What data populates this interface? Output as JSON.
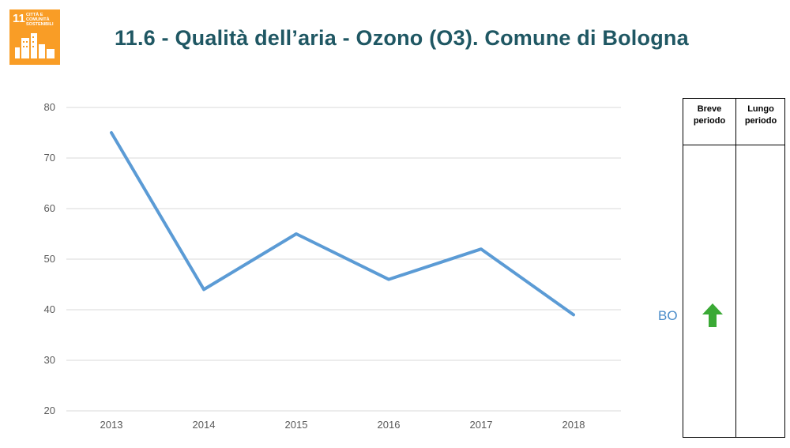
{
  "header": {
    "title": "11.6 - Qualità dell’aria - Ozono (O3). Comune di Bologna",
    "sdg_number": "11",
    "sdg_label": "Città e comunità sostenibili"
  },
  "chart_data": {
    "type": "line",
    "categories": [
      "2013",
      "2014",
      "2015",
      "2016",
      "2017",
      "2018"
    ],
    "series": [
      {
        "values": [
          75,
          44,
          55,
          46,
          52,
          39
        ],
        "color": "#5B9BD5"
      }
    ],
    "ylim": [
      20,
      80
    ],
    "yticks": [
      20,
      30,
      40,
      50,
      60,
      70,
      80
    ],
    "grid": true,
    "xlabel": "",
    "ylabel": ""
  },
  "trend_table": {
    "col_short": "Breve periodo",
    "col_long": "Lungo periodo",
    "row_label": "BO",
    "short_trend": "arrow-up",
    "short_color": "#3AA935"
  }
}
